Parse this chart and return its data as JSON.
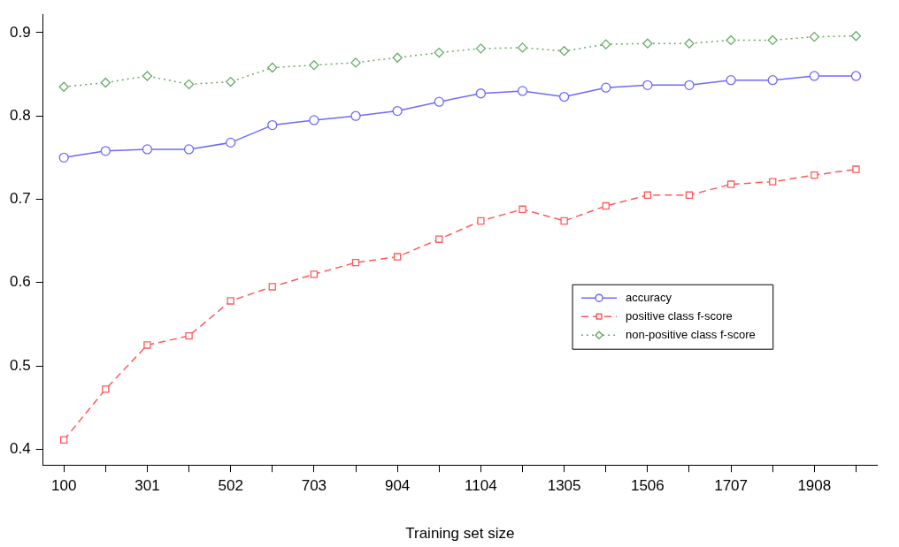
{
  "chart_data": {
    "type": "line",
    "xlabel": "Training set size",
    "categories": [
      "100",
      null,
      "301",
      null,
      "502",
      null,
      "703",
      null,
      "904",
      null,
      "1104",
      null,
      "1305",
      null,
      "1506",
      null,
      "1707",
      null,
      "1908",
      null
    ],
    "series": [
      {
        "name": "accuracy",
        "color": "#6b6bff",
        "marker": "circle",
        "line_style": "solid",
        "values": [
          0.75,
          0.758,
          0.76,
          0.76,
          0.768,
          0.789,
          0.795,
          0.8,
          0.806,
          0.817,
          0.827,
          0.83,
          0.823,
          0.834,
          0.837,
          0.837,
          0.843,
          0.843,
          0.848,
          0.848
        ]
      },
      {
        "name": "positive class f-score",
        "color": "#ff5a5a",
        "marker": "square",
        "line_style": "dashed",
        "values": [
          0.411,
          0.472,
          0.525,
          0.536,
          0.578,
          0.595,
          0.61,
          0.624,
          0.631,
          0.652,
          0.674,
          0.688,
          0.674,
          0.692,
          0.705,
          0.705,
          0.718,
          0.721,
          0.729,
          0.736
        ]
      },
      {
        "name": "non-positive class f-score",
        "color": "#6aaa6a",
        "marker": "diamond",
        "line_style": "dotted",
        "values": [
          0.835,
          0.84,
          0.848,
          0.838,
          0.841,
          0.858,
          0.861,
          0.864,
          0.87,
          0.876,
          0.881,
          0.882,
          0.878,
          0.886,
          0.887,
          0.887,
          0.891,
          0.891,
          0.895,
          0.896
        ]
      }
    ],
    "ylim": [
      0.381,
      0.922
    ],
    "yticks": [
      0.4,
      0.5,
      0.6,
      0.7,
      0.8,
      0.9
    ],
    "grid": false,
    "legend": "right"
  }
}
